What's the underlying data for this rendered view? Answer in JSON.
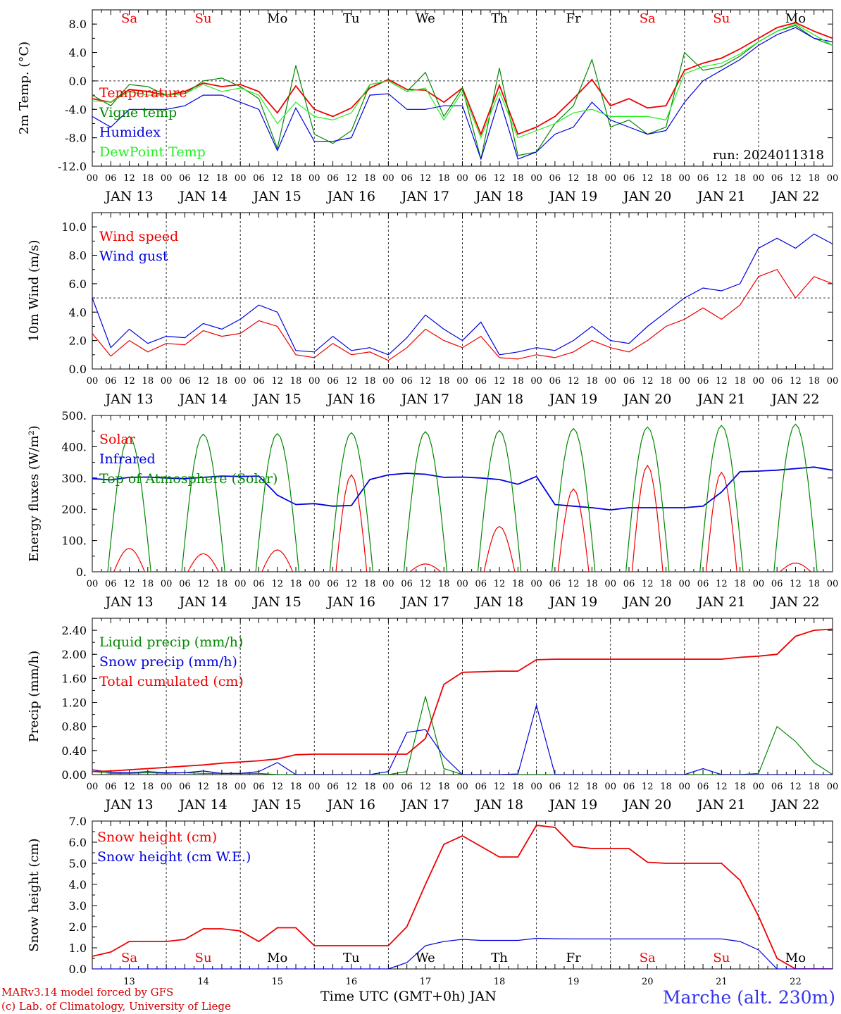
{
  "colors": {
    "red": "#ee0000",
    "green": "#008800",
    "blue": "#0000dd",
    "lightgreen": "#22ee22"
  },
  "hour_labels": [
    "00",
    "06",
    "12",
    "18"
  ],
  "end_hour_label": "00",
  "date_labels": [
    "JAN 13",
    "JAN 14",
    "JAN 15",
    "JAN 16",
    "JAN 17",
    "JAN 18",
    "JAN 19",
    "JAN 20",
    "JAN 21",
    "JAN 22"
  ],
  "day_names": [
    "Sa",
    "Su",
    "Mo",
    "Tu",
    "We",
    "Th",
    "Fr",
    "Sa",
    "Su",
    "Mo"
  ],
  "day_colors": [
    "#ee0000",
    "#ee0000",
    "#000000",
    "#000000",
    "#000000",
    "#000000",
    "#000000",
    "#ee0000",
    "#ee0000",
    "#000000"
  ],
  "day_numbers": [
    "13",
    "14",
    "15",
    "16",
    "17",
    "18",
    "19",
    "20",
    "21",
    "22"
  ],
  "footer": {
    "credit_line1": "MARv3.14 model forced by GFS",
    "credit_line2": "(c) Lab. of Climatology, University of Liege",
    "xlabel": "Time UTC (GMT+0h) JAN",
    "station": "Marche (alt. 230m)"
  },
  "chart_data": [
    {
      "type": "line",
      "ylabel": "2m Temp. (°C)",
      "ylim": [
        -12,
        10
      ],
      "yticks": [
        8.0,
        4.0,
        0.0,
        -4.0,
        -8.0,
        -12.0
      ],
      "ytick_labels": [
        "8.0",
        "4.0",
        "0.0",
        "-4.0",
        "-8.0",
        "-12.0"
      ],
      "ref_line": 0,
      "annotation": "run: 2024011318",
      "x": [
        0,
        6,
        12,
        18,
        24,
        30,
        36,
        42,
        48,
        54,
        60,
        66,
        72,
        78,
        84,
        90,
        96,
        102,
        108,
        114,
        120,
        126,
        132,
        138,
        144,
        150,
        156,
        162,
        168,
        174,
        180,
        186,
        192,
        198,
        204,
        210,
        216,
        222,
        228,
        234,
        240
      ],
      "series": [
        {
          "name": "Temperature",
          "color": "#ee0000",
          "values": [
            -2.5,
            -3.0,
            -1.2,
            -1.5,
            -2.0,
            -1.5,
            -0.3,
            -0.8,
            -0.5,
            -1.5,
            -4.5,
            -0.7,
            -4.0,
            -5.0,
            -3.8,
            -1.0,
            0.2,
            -1.2,
            -1.3,
            -3.0,
            -1.0,
            -7.5,
            -0.6,
            -7.5,
            -6.5,
            -5.0,
            -2.5,
            0.2,
            -3.5,
            -2.5,
            -3.8,
            -3.5,
            1.5,
            2.5,
            3.2,
            4.5,
            6.0,
            7.5,
            8.2,
            7.0,
            6.0
          ]
        },
        {
          "name": "Vigne temp",
          "color": "#008800",
          "values": [
            -2.0,
            -3.5,
            -0.5,
            -0.8,
            -2.0,
            -1.8,
            0.0,
            0.4,
            -0.8,
            -2.5,
            -9.5,
            2.2,
            -7.5,
            -8.8,
            -7.0,
            -0.5,
            0.0,
            -1.5,
            1.2,
            -5.0,
            -1.0,
            -11.0,
            1.8,
            -10.5,
            -10.0,
            -6.0,
            -3.5,
            3.0,
            -6.5,
            -5.5,
            -7.5,
            -6.5,
            4.0,
            1.5,
            2.0,
            3.5,
            5.5,
            7.0,
            7.8,
            6.0,
            5.0
          ]
        },
        {
          "name": "Humidex",
          "color": "#0000dd",
          "values": [
            -5.0,
            -6.5,
            -4.0,
            -4.0,
            -4.0,
            -3.5,
            -2.0,
            -2.0,
            -3.0,
            -4.0,
            -9.8,
            -3.8,
            -8.5,
            -8.5,
            -8.0,
            -2.0,
            -1.8,
            -4.0,
            -4.0,
            -3.5,
            -3.5,
            -11.0,
            -2.5,
            -11.0,
            -10.0,
            -7.5,
            -6.5,
            -3.0,
            -5.5,
            -6.5,
            -7.5,
            -7.0,
            -3.0,
            0.0,
            1.5,
            3.0,
            5.0,
            6.5,
            7.5,
            6.0,
            5.5
          ]
        },
        {
          "name": "DewPoint Temp",
          "color": "#22ee22",
          "values": [
            -2.8,
            -3.0,
            -1.5,
            -2.0,
            -2.0,
            -1.8,
            -0.5,
            -1.5,
            -1.0,
            -2.0,
            -6.0,
            -3.0,
            -5.0,
            -5.5,
            -4.5,
            -0.5,
            0.0,
            -1.5,
            -1.0,
            -5.5,
            -1.5,
            -8.0,
            -1.5,
            -8.0,
            -7.0,
            -6.0,
            -4.5,
            -4.0,
            -5.0,
            -5.0,
            -5.0,
            -5.5,
            1.0,
            2.0,
            2.5,
            3.8,
            5.5,
            7.0,
            8.0,
            6.5,
            5.0
          ]
        }
      ]
    },
    {
      "type": "line",
      "ylabel": "10m Wind (m/s)",
      "ylim": [
        0,
        11
      ],
      "yticks": [
        10.0,
        8.0,
        6.0,
        4.0,
        2.0,
        0.0
      ],
      "ytick_labels": [
        "10.0",
        "8.0",
        "6.0",
        "4.0",
        "2.0",
        "0.0"
      ],
      "ref_line": 5,
      "x": [
        0,
        6,
        12,
        18,
        24,
        30,
        36,
        42,
        48,
        54,
        60,
        66,
        72,
        78,
        84,
        90,
        96,
        102,
        108,
        114,
        120,
        126,
        132,
        138,
        144,
        150,
        156,
        162,
        168,
        174,
        180,
        186,
        192,
        198,
        204,
        210,
        216,
        222,
        228,
        234,
        240
      ],
      "series": [
        {
          "name": "Wind speed",
          "color": "#ee0000",
          "values": [
            2.5,
            0.9,
            2.0,
            1.2,
            1.8,
            1.7,
            2.7,
            2.3,
            2.5,
            3.4,
            3.0,
            1.0,
            0.8,
            1.8,
            1.0,
            1.2,
            0.6,
            1.5,
            2.8,
            2.0,
            1.5,
            2.3,
            0.8,
            0.7,
            1.0,
            0.8,
            1.2,
            2.0,
            1.5,
            1.2,
            2.0,
            3.0,
            3.5,
            4.3,
            3.5,
            4.5,
            6.5,
            7.0,
            5.0,
            6.5,
            6.0
          ]
        },
        {
          "name": "Wind gust",
          "color": "#0000dd",
          "values": [
            5.0,
            1.5,
            2.8,
            1.8,
            2.3,
            2.2,
            3.2,
            2.8,
            3.5,
            4.5,
            4.0,
            1.3,
            1.2,
            2.3,
            1.3,
            1.5,
            1.0,
            2.2,
            3.8,
            2.8,
            2.0,
            3.3,
            1.0,
            1.2,
            1.5,
            1.3,
            2.0,
            3.0,
            2.0,
            1.8,
            3.0,
            4.0,
            5.0,
            5.7,
            5.5,
            6.0,
            8.5,
            9.2,
            8.5,
            9.5,
            8.8
          ]
        }
      ]
    },
    {
      "type": "line",
      "ylabel": "Energy fluxes (W/m²)",
      "ylim": [
        0,
        500
      ],
      "yticks": [
        500,
        400,
        300,
        200,
        100,
        0
      ],
      "ytick_labels": [
        "500.",
        "400.",
        "300.",
        "200.",
        "100.",
        "0."
      ],
      "x": [
        0,
        6,
        12,
        18,
        24,
        30,
        36,
        42,
        48,
        54,
        60,
        66,
        72,
        78,
        84,
        90,
        96,
        102,
        108,
        114,
        120,
        126,
        132,
        138,
        144,
        150,
        156,
        162,
        168,
        174,
        180,
        186,
        192,
        198,
        204,
        210,
        216,
        222,
        228,
        234,
        240
      ],
      "series": [
        {
          "name": "Solar",
          "color": "#ee0000",
          "peaks": [
            75,
            58,
            70,
            310,
            25,
            145,
            265,
            340,
            318,
            28
          ],
          "peak_hour": 12,
          "width_hours": 10
        },
        {
          "name": "Infrared",
          "color": "#0000dd",
          "values": [
            298,
            294,
            302,
            303,
            300,
            298,
            302,
            306,
            305,
            306,
            245,
            215,
            218,
            210,
            212,
            295,
            310,
            315,
            312,
            302,
            303,
            300,
            295,
            280,
            305,
            215,
            210,
            205,
            198,
            205,
            205,
            205,
            205,
            210,
            255,
            320,
            322,
            325,
            330,
            335,
            325
          ]
        },
        {
          "name": "Top of Atmosphere (Solar)",
          "color": "#008800",
          "peaks": [
            433,
            440,
            442,
            445,
            448,
            452,
            458,
            463,
            468,
            472
          ],
          "peak_hour": 12,
          "width_hours": 14
        }
      ]
    },
    {
      "type": "line",
      "ylabel": "Precip (mm/h)",
      "ylim": [
        0,
        2.6
      ],
      "yticks": [
        2.4,
        2.0,
        1.6,
        1.2,
        0.8,
        0.4,
        0.0
      ],
      "ytick_labels": [
        "2.40",
        "2.00",
        "1.60",
        "1.20",
        "0.80",
        "0.40",
        "0.00"
      ],
      "x": [
        0,
        6,
        12,
        18,
        24,
        30,
        36,
        42,
        48,
        54,
        60,
        66,
        72,
        78,
        84,
        90,
        96,
        102,
        108,
        114,
        120,
        126,
        132,
        138,
        144,
        150,
        156,
        162,
        168,
        174,
        180,
        186,
        192,
        198,
        204,
        210,
        216,
        222,
        228,
        234,
        240
      ],
      "series": [
        {
          "name": "Liquid precip (mm/h)",
          "color": "#008800",
          "values": [
            0.05,
            0.02,
            0.02,
            0.03,
            0.02,
            0.03,
            0.02,
            0.02,
            0.02,
            0.02,
            0,
            0,
            0,
            0,
            0,
            0,
            0,
            0.05,
            1.3,
            0.1,
            0,
            0,
            0,
            0,
            0,
            0,
            0,
            0,
            0,
            0,
            0,
            0,
            0,
            0,
            0,
            0,
            0.02,
            0.8,
            0.55,
            0.2,
            0
          ]
        },
        {
          "name": "Snow precip (mm/h)",
          "color": "#0000dd",
          "values": [
            0.08,
            0.04,
            0.03,
            0.05,
            0.03,
            0.03,
            0.06,
            0.02,
            0.02,
            0.05,
            0.2,
            0,
            0,
            0,
            0,
            0,
            0.05,
            0.7,
            0.75,
            0.3,
            0,
            0,
            0,
            0.01,
            1.15,
            0,
            0,
            0,
            0,
            0,
            0,
            0,
            0,
            0.1,
            0,
            0,
            0,
            0,
            0,
            0,
            0
          ]
        },
        {
          "name": "Total cumulated (cm)",
          "color": "#ee0000",
          "values": [
            0.05,
            0.06,
            0.08,
            0.1,
            0.12,
            0.14,
            0.16,
            0.19,
            0.21,
            0.23,
            0.26,
            0.33,
            0.34,
            0.34,
            0.34,
            0.34,
            0.34,
            0.34,
            0.6,
            1.5,
            1.7,
            1.71,
            1.72,
            1.72,
            1.91,
            1.92,
            1.92,
            1.92,
            1.92,
            1.92,
            1.92,
            1.92,
            1.92,
            1.92,
            1.92,
            1.95,
            1.97,
            2.0,
            2.3,
            2.4,
            2.42
          ]
        }
      ]
    },
    {
      "type": "line",
      "ylabel": "Snow height (cm)",
      "ylim": [
        0,
        7
      ],
      "yticks": [
        7.0,
        6.0,
        5.0,
        4.0,
        3.0,
        2.0,
        1.0,
        0.0
      ],
      "ytick_labels": [
        "7.0",
        "6.0",
        "5.0",
        "4.0",
        "3.0",
        "2.0",
        "1.0",
        "0.0"
      ],
      "x": [
        0,
        6,
        12,
        18,
        24,
        30,
        36,
        42,
        48,
        54,
        60,
        66,
        72,
        78,
        84,
        90,
        96,
        102,
        108,
        114,
        120,
        126,
        132,
        138,
        144,
        150,
        156,
        162,
        168,
        174,
        180,
        186,
        192,
        198,
        204,
        210,
        216,
        222,
        228,
        234,
        240
      ],
      "series": [
        {
          "name": "Snow height (cm)",
          "color": "#ee0000",
          "values": [
            0.6,
            0.8,
            1.3,
            1.3,
            1.3,
            1.4,
            1.9,
            1.9,
            1.8,
            1.3,
            1.95,
            1.95,
            1.1,
            1.1,
            1.1,
            1.1,
            1.1,
            2.0,
            4.0,
            5.9,
            6.3,
            5.8,
            5.3,
            5.3,
            6.8,
            6.7,
            5.8,
            5.7,
            5.7,
            5.7,
            5.05,
            5.0,
            5.0,
            5.0,
            5.0,
            4.2,
            2.5,
            0.5,
            0,
            0,
            0
          ]
        },
        {
          "name": "Snow height (cm W.E.)",
          "color": "#0000dd",
          "values": [
            0,
            0,
            0,
            0,
            0,
            0,
            0,
            0,
            0,
            0,
            0,
            0,
            0,
            0,
            0,
            0,
            0,
            0.3,
            1.1,
            1.3,
            1.4,
            1.35,
            1.35,
            1.35,
            1.45,
            1.43,
            1.42,
            1.42,
            1.42,
            1.42,
            1.42,
            1.42,
            1.42,
            1.42,
            1.42,
            1.3,
            0.9,
            0,
            0,
            0,
            0
          ]
        }
      ]
    }
  ]
}
